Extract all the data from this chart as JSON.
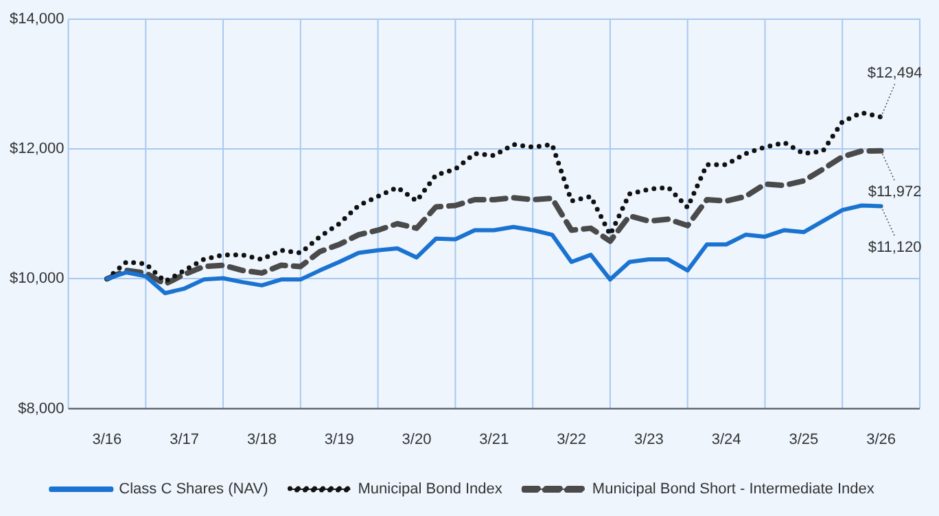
{
  "chart_data": {
    "type": "line",
    "categories": [
      "3/16",
      null,
      null,
      null,
      "3/17",
      null,
      null,
      null,
      "3/18",
      null,
      null,
      null,
      "3/19",
      null,
      null,
      null,
      "3/20",
      null,
      null,
      null,
      "3/21",
      null,
      null,
      null,
      "3/22",
      null,
      null,
      null,
      "3/23",
      null,
      null,
      null,
      "3/24",
      null,
      null,
      null,
      "3/25",
      null,
      null,
      null,
      "3/26"
    ],
    "series": [
      {
        "name": "Class C Shares (NAV)",
        "color": "#1a73d0",
        "line_style": "solid",
        "values": [
          10000,
          10100,
          10040,
          9780,
          9850,
          9990,
          10010,
          9950,
          9900,
          9990,
          9990,
          10130,
          10260,
          10400,
          10440,
          10470,
          10330,
          10620,
          10610,
          10750,
          10750,
          10800,
          10750,
          10680,
          10260,
          10370,
          9990,
          10260,
          10300,
          10300,
          10130,
          10530,
          10530,
          10680,
          10650,
          10750,
          10720,
          10890,
          11060,
          11130,
          11120
        ]
      },
      {
        "name": "Municipal Bond Index",
        "color": "#111111",
        "line_style": "dotted",
        "values": [
          10000,
          10260,
          10230,
          9960,
          10130,
          10300,
          10370,
          10370,
          10300,
          10440,
          10400,
          10650,
          10850,
          11130,
          11270,
          11410,
          11200,
          11600,
          11690,
          11930,
          11900,
          12070,
          12030,
          12070,
          11200,
          11270,
          10680,
          11310,
          11380,
          11410,
          11100,
          11760,
          11760,
          11930,
          12030,
          12100,
          11930,
          11970,
          12420,
          12560,
          12494
        ]
      },
      {
        "name": "Municipal Bond Short - Intermediate Index",
        "color": "#4a4a4a",
        "line_style": "dashed",
        "values": [
          10000,
          10130,
          10090,
          9920,
          10070,
          10190,
          10210,
          10130,
          10090,
          10210,
          10190,
          10420,
          10530,
          10680,
          10750,
          10850,
          10780,
          11110,
          11130,
          11220,
          11220,
          11250,
          11220,
          11240,
          10750,
          10780,
          10580,
          10970,
          10890,
          10920,
          10820,
          11220,
          11200,
          11270,
          11460,
          11440,
          11510,
          11690,
          11880,
          11970,
          11972
        ]
      }
    ],
    "ylim": [
      8000,
      14000
    ],
    "yticks": [
      {
        "value": 8000,
        "label": "$8,000"
      },
      {
        "value": 10000,
        "label": "$10,000"
      },
      {
        "value": 12000,
        "label": "$12,000"
      },
      {
        "value": 14000,
        "label": "$14,000"
      }
    ],
    "grid": true,
    "legend": "bottom",
    "marker": "none",
    "annotations": [
      {
        "text": "$12,494",
        "x": "3/26",
        "y": 12494
      },
      {
        "text": "$11,972",
        "x": "3/26",
        "y": 11972
      },
      {
        "text": "$11,120",
        "x": "3/26",
        "y": 11120
      }
    ]
  }
}
